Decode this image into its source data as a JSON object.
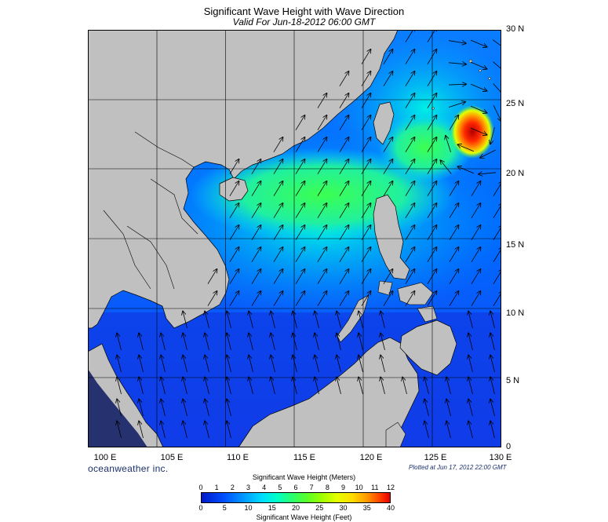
{
  "header": {
    "title": "Significant Wave Height with Wave Direction",
    "subtitle": "Valid For Jun-18-2012 06:00 GMT"
  },
  "map": {
    "lon_range": [
      100,
      130
    ],
    "lat_range": [
      0,
      30
    ],
    "lat_labels": [
      "30 N",
      "25 N",
      "20 N",
      "15 N",
      "10 N",
      "5 N",
      "0"
    ],
    "lon_labels": [
      "100 E",
      "105 E",
      "110 E",
      "115 E",
      "120 E",
      "125 E",
      "130 E"
    ],
    "land_color": "#c0c0c0",
    "grid_color": "#000000",
    "arrow_color": "#000000",
    "peak_region_note_color": "#e60000"
  },
  "footer": {
    "brand": "oceanweather inc.",
    "plotted": "Plotted at Jun 17, 2012 22:00 GMT"
  },
  "colorbar": {
    "title_meters": "Significant Wave Height (Meters)",
    "title_feet": "Significant Wave Height (Feet)",
    "meters_ticks": [
      "0",
      "1",
      "2",
      "3",
      "4",
      "5",
      "6",
      "7",
      "8",
      "9",
      "10",
      "11",
      "12"
    ],
    "feet_ticks": [
      "0",
      "5",
      "10",
      "15",
      "20",
      "25",
      "30",
      "35",
      "40"
    ]
  }
}
